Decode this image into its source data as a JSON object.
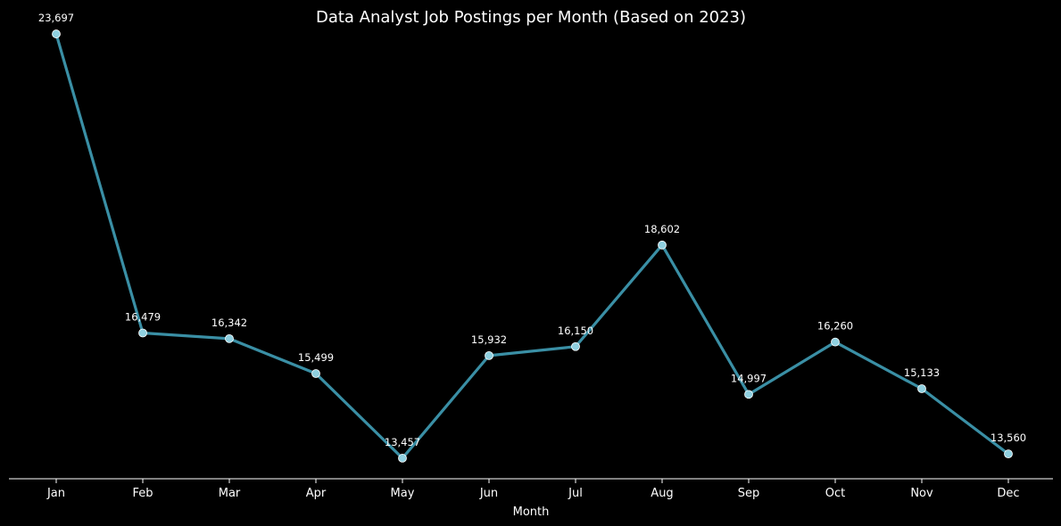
{
  "chart_data": {
    "type": "line",
    "title": "Data Analyst Job Postings per Month (Based on 2023)",
    "xlabel": "Month",
    "ylabel": "",
    "categories": [
      "Jan",
      "Feb",
      "Mar",
      "Apr",
      "May",
      "Jun",
      "Jul",
      "Aug",
      "Sep",
      "Oct",
      "Nov",
      "Dec"
    ],
    "values": [
      23697,
      16479,
      16342,
      15499,
      13457,
      15932,
      16150,
      18602,
      14997,
      16260,
      15133,
      13560
    ],
    "value_labels": [
      "23,697",
      "16,479",
      "16,342",
      "15,499",
      "13,457",
      "15,932",
      "16,150",
      "18,602",
      "14,997",
      "16,260",
      "15,133",
      "13,560"
    ],
    "ylim": [
      12960,
      24000
    ],
    "grid": false,
    "legend": "none",
    "line_color": "#3a8fa5",
    "marker_fill": "#8fd0e0",
    "marker_edge": "#ffffff",
    "background": "#000000",
    "text_color": "#ffffff"
  }
}
